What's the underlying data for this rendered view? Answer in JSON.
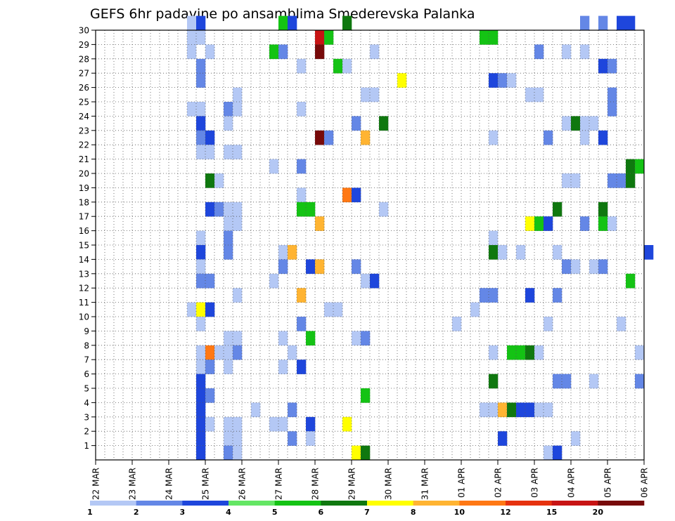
{
  "chart_data": {
    "type": "heatmap",
    "title": "GEFS 6hr padavine po ansamblima Smederevska Palanka",
    "x_labels": [
      "22 MAR",
      "23 MAR",
      "24 MAR",
      "25 MAR",
      "26 MAR",
      "27 MAR",
      "28 MAR",
      "29 MAR",
      "30 MAR",
      "31 MAR",
      "01 APR",
      "02 APR",
      "03 APR",
      "04 APR",
      "05 APR",
      "06 APR"
    ],
    "y_labels": [
      "1",
      "2",
      "3",
      "4",
      "5",
      "6",
      "7",
      "8",
      "9",
      "10",
      "11",
      "12",
      "13",
      "14",
      "15",
      "16",
      "17",
      "18",
      "19",
      "20",
      "21",
      "22",
      "23",
      "24",
      "25",
      "26",
      "27",
      "28",
      "29",
      "30"
    ],
    "ylim": [
      0,
      30
    ],
    "grid": true,
    "colorbar": {
      "tick_labels": [
        "1",
        "2",
        "3",
        "4",
        "5",
        "6",
        "7",
        "8",
        "10",
        "12",
        "15",
        "20"
      ],
      "colors": [
        "#b4c8f5",
        "#6487e6",
        "#1e46dc",
        "#64e664",
        "#14c314",
        "#0f780f",
        "#ffff00",
        "#ffb432",
        "#ff7814",
        "#e6320f",
        "#c81414",
        "#780a0a"
      ]
    },
    "cells": [
      {
        "x": 10,
        "y": 30,
        "c": 1
      },
      {
        "x": 11,
        "y": 30,
        "c": 3
      },
      {
        "x": 20,
        "y": 30,
        "c": 5
      },
      {
        "x": 21,
        "y": 30,
        "c": 3
      },
      {
        "x": 27,
        "y": 30,
        "c": 6
      },
      {
        "x": 53,
        "y": 30,
        "c": 2
      },
      {
        "x": 55,
        "y": 30,
        "c": 2
      },
      {
        "x": 57,
        "y": 30,
        "c": 3
      },
      {
        "x": 58,
        "y": 30,
        "c": 3
      },
      {
        "x": 10,
        "y": 29,
        "c": 1
      },
      {
        "x": 11,
        "y": 29,
        "c": 1
      },
      {
        "x": 24,
        "y": 29,
        "c": 11
      },
      {
        "x": 25,
        "y": 29,
        "c": 5
      },
      {
        "x": 42,
        "y": 29,
        "c": 5
      },
      {
        "x": 43,
        "y": 29,
        "c": 5
      },
      {
        "x": 10,
        "y": 28,
        "c": 1
      },
      {
        "x": 12,
        "y": 28,
        "c": 1
      },
      {
        "x": 19,
        "y": 28,
        "c": 5
      },
      {
        "x": 20,
        "y": 28,
        "c": 2
      },
      {
        "x": 24,
        "y": 28,
        "c": 12
      },
      {
        "x": 30,
        "y": 28,
        "c": 1
      },
      {
        "x": 48,
        "y": 28,
        "c": 2
      },
      {
        "x": 51,
        "y": 28,
        "c": 1
      },
      {
        "x": 53,
        "y": 28,
        "c": 1
      },
      {
        "x": 11,
        "y": 27,
        "c": 2
      },
      {
        "x": 22,
        "y": 27,
        "c": 1
      },
      {
        "x": 26,
        "y": 27,
        "c": 5
      },
      {
        "x": 27,
        "y": 27,
        "c": 1
      },
      {
        "x": 55,
        "y": 27,
        "c": 3
      },
      {
        "x": 56,
        "y": 27,
        "c": 2
      },
      {
        "x": 11,
        "y": 26,
        "c": 2
      },
      {
        "x": 33,
        "y": 26,
        "c": 7
      },
      {
        "x": 43,
        "y": 26,
        "c": 3
      },
      {
        "x": 44,
        "y": 26,
        "c": 2
      },
      {
        "x": 45,
        "y": 26,
        "c": 1
      },
      {
        "x": 15,
        "y": 25,
        "c": 1
      },
      {
        "x": 29,
        "y": 25,
        "c": 1
      },
      {
        "x": 30,
        "y": 25,
        "c": 1
      },
      {
        "x": 47,
        "y": 25,
        "c": 1
      },
      {
        "x": 48,
        "y": 25,
        "c": 1
      },
      {
        "x": 56,
        "y": 25,
        "c": 2
      },
      {
        "x": 10,
        "y": 24,
        "c": 1
      },
      {
        "x": 11,
        "y": 24,
        "c": 1
      },
      {
        "x": 14,
        "y": 24,
        "c": 2
      },
      {
        "x": 15,
        "y": 24,
        "c": 1
      },
      {
        "x": 22,
        "y": 24,
        "c": 1
      },
      {
        "x": 56,
        "y": 24,
        "c": 2
      },
      {
        "x": 11,
        "y": 23,
        "c": 3
      },
      {
        "x": 14,
        "y": 23,
        "c": 1
      },
      {
        "x": 28,
        "y": 23,
        "c": 2
      },
      {
        "x": 31,
        "y": 23,
        "c": 6
      },
      {
        "x": 51,
        "y": 23,
        "c": 1
      },
      {
        "x": 52,
        "y": 23,
        "c": 6
      },
      {
        "x": 53,
        "y": 23,
        "c": 1
      },
      {
        "x": 54,
        "y": 23,
        "c": 1
      },
      {
        "x": 11,
        "y": 22,
        "c": 2
      },
      {
        "x": 12,
        "y": 22,
        "c": 3
      },
      {
        "x": 24,
        "y": 22,
        "c": 12
      },
      {
        "x": 25,
        "y": 22,
        "c": 2
      },
      {
        "x": 29,
        "y": 22,
        "c": 8
      },
      {
        "x": 43,
        "y": 22,
        "c": 1
      },
      {
        "x": 49,
        "y": 22,
        "c": 2
      },
      {
        "x": 53,
        "y": 22,
        "c": 1
      },
      {
        "x": 55,
        "y": 22,
        "c": 3
      },
      {
        "x": 11,
        "y": 21,
        "c": 1
      },
      {
        "x": 12,
        "y": 21,
        "c": 1
      },
      {
        "x": 14,
        "y": 21,
        "c": 1
      },
      {
        "x": 15,
        "y": 21,
        "c": 1
      },
      {
        "x": 19,
        "y": 20,
        "c": 1
      },
      {
        "x": 22,
        "y": 20,
        "c": 2
      },
      {
        "x": 58,
        "y": 20,
        "c": 6
      },
      {
        "x": 59,
        "y": 20,
        "c": 5
      },
      {
        "x": 12,
        "y": 19,
        "c": 6
      },
      {
        "x": 13,
        "y": 19,
        "c": 1
      },
      {
        "x": 51,
        "y": 19,
        "c": 1
      },
      {
        "x": 52,
        "y": 19,
        "c": 1
      },
      {
        "x": 56,
        "y": 19,
        "c": 2
      },
      {
        "x": 57,
        "y": 19,
        "c": 2
      },
      {
        "x": 58,
        "y": 19,
        "c": 6
      },
      {
        "x": 22,
        "y": 18,
        "c": 1
      },
      {
        "x": 27,
        "y": 18,
        "c": 9
      },
      {
        "x": 28,
        "y": 18,
        "c": 3
      },
      {
        "x": 12,
        "y": 17,
        "c": 3
      },
      {
        "x": 13,
        "y": 17,
        "c": 2
      },
      {
        "x": 14,
        "y": 17,
        "c": 1
      },
      {
        "x": 15,
        "y": 17,
        "c": 1
      },
      {
        "x": 22,
        "y": 17,
        "c": 5
      },
      {
        "x": 23,
        "y": 17,
        "c": 5
      },
      {
        "x": 31,
        "y": 17,
        "c": 1
      },
      {
        "x": 50,
        "y": 17,
        "c": 6
      },
      {
        "x": 55,
        "y": 17,
        "c": 6
      },
      {
        "x": 14,
        "y": 16,
        "c": 1
      },
      {
        "x": 15,
        "y": 16,
        "c": 1
      },
      {
        "x": 24,
        "y": 16,
        "c": 8
      },
      {
        "x": 47,
        "y": 16,
        "c": 7
      },
      {
        "x": 48,
        "y": 16,
        "c": 5
      },
      {
        "x": 49,
        "y": 16,
        "c": 3
      },
      {
        "x": 53,
        "y": 16,
        "c": 2
      },
      {
        "x": 55,
        "y": 16,
        "c": 5
      },
      {
        "x": 56,
        "y": 16,
        "c": 1
      },
      {
        "x": 11,
        "y": 15,
        "c": 1
      },
      {
        "x": 14,
        "y": 15,
        "c": 2
      },
      {
        "x": 43,
        "y": 15,
        "c": 1
      },
      {
        "x": 11,
        "y": 14,
        "c": 3
      },
      {
        "x": 14,
        "y": 14,
        "c": 2
      },
      {
        "x": 20,
        "y": 14,
        "c": 1
      },
      {
        "x": 21,
        "y": 14,
        "c": 8
      },
      {
        "x": 43,
        "y": 14,
        "c": 6
      },
      {
        "x": 44,
        "y": 14,
        "c": 1
      },
      {
        "x": 46,
        "y": 14,
        "c": 1
      },
      {
        "x": 50,
        "y": 14,
        "c": 1
      },
      {
        "x": 60,
        "y": 14,
        "c": 3
      },
      {
        "x": 11,
        "y": 13,
        "c": 1
      },
      {
        "x": 20,
        "y": 13,
        "c": 2
      },
      {
        "x": 23,
        "y": 13,
        "c": 3
      },
      {
        "x": 24,
        "y": 13,
        "c": 8
      },
      {
        "x": 28,
        "y": 13,
        "c": 2
      },
      {
        "x": 51,
        "y": 13,
        "c": 2
      },
      {
        "x": 52,
        "y": 13,
        "c": 1
      },
      {
        "x": 54,
        "y": 13,
        "c": 1
      },
      {
        "x": 55,
        "y": 13,
        "c": 2
      },
      {
        "x": 11,
        "y": 12,
        "c": 2
      },
      {
        "x": 12,
        "y": 12,
        "c": 2
      },
      {
        "x": 19,
        "y": 12,
        "c": 1
      },
      {
        "x": 29,
        "y": 12,
        "c": 1
      },
      {
        "x": 30,
        "y": 12,
        "c": 3
      },
      {
        "x": 58,
        "y": 12,
        "c": 5
      },
      {
        "x": 15,
        "y": 11,
        "c": 1
      },
      {
        "x": 22,
        "y": 11,
        "c": 8
      },
      {
        "x": 42,
        "y": 11,
        "c": 2
      },
      {
        "x": 43,
        "y": 11,
        "c": 2
      },
      {
        "x": 47,
        "y": 11,
        "c": 3
      },
      {
        "x": 50,
        "y": 11,
        "c": 2
      },
      {
        "x": 10,
        "y": 10,
        "c": 1
      },
      {
        "x": 11,
        "y": 10,
        "c": 7
      },
      {
        "x": 12,
        "y": 10,
        "c": 3
      },
      {
        "x": 25,
        "y": 10,
        "c": 1
      },
      {
        "x": 26,
        "y": 10,
        "c": 1
      },
      {
        "x": 41,
        "y": 10,
        "c": 1
      },
      {
        "x": 11,
        "y": 9,
        "c": 1
      },
      {
        "x": 22,
        "y": 9,
        "c": 2
      },
      {
        "x": 39,
        "y": 9,
        "c": 1
      },
      {
        "x": 49,
        "y": 9,
        "c": 1
      },
      {
        "x": 57,
        "y": 9,
        "c": 1
      },
      {
        "x": 14,
        "y": 8,
        "c": 1
      },
      {
        "x": 15,
        "y": 8,
        "c": 1
      },
      {
        "x": 20,
        "y": 8,
        "c": 1
      },
      {
        "x": 23,
        "y": 8,
        "c": 5
      },
      {
        "x": 28,
        "y": 8,
        "c": 1
      },
      {
        "x": 29,
        "y": 8,
        "c": 2
      },
      {
        "x": 11,
        "y": 7,
        "c": 1
      },
      {
        "x": 12,
        "y": 7,
        "c": 9
      },
      {
        "x": 13,
        "y": 7,
        "c": 1
      },
      {
        "x": 14,
        "y": 7,
        "c": 1
      },
      {
        "x": 15,
        "y": 7,
        "c": 2
      },
      {
        "x": 21,
        "y": 7,
        "c": 1
      },
      {
        "x": 43,
        "y": 7,
        "c": 1
      },
      {
        "x": 45,
        "y": 7,
        "c": 5
      },
      {
        "x": 46,
        "y": 7,
        "c": 5
      },
      {
        "x": 47,
        "y": 7,
        "c": 6
      },
      {
        "x": 48,
        "y": 7,
        "c": 1
      },
      {
        "x": 59,
        "y": 7,
        "c": 1
      },
      {
        "x": 11,
        "y": 6,
        "c": 1
      },
      {
        "x": 12,
        "y": 6,
        "c": 2
      },
      {
        "x": 14,
        "y": 6,
        "c": 1
      },
      {
        "x": 20,
        "y": 6,
        "c": 1
      },
      {
        "x": 22,
        "y": 6,
        "c": 3
      },
      {
        "x": 11,
        "y": 5,
        "c": 3
      },
      {
        "x": 43,
        "y": 5,
        "c": 6
      },
      {
        "x": 50,
        "y": 5,
        "c": 2
      },
      {
        "x": 51,
        "y": 5,
        "c": 2
      },
      {
        "x": 54,
        "y": 5,
        "c": 1
      },
      {
        "x": 59,
        "y": 5,
        "c": 2
      },
      {
        "x": 11,
        "y": 4,
        "c": 3
      },
      {
        "x": 12,
        "y": 4,
        "c": 2
      },
      {
        "x": 29,
        "y": 4,
        "c": 5
      },
      {
        "x": 11,
        "y": 3,
        "c": 3
      },
      {
        "x": 17,
        "y": 3,
        "c": 1
      },
      {
        "x": 21,
        "y": 3,
        "c": 2
      },
      {
        "x": 42,
        "y": 3,
        "c": 1
      },
      {
        "x": 43,
        "y": 3,
        "c": 1
      },
      {
        "x": 44,
        "y": 3,
        "c": 8
      },
      {
        "x": 45,
        "y": 3,
        "c": 6
      },
      {
        "x": 46,
        "y": 3,
        "c": 3
      },
      {
        "x": 47,
        "y": 3,
        "c": 3
      },
      {
        "x": 48,
        "y": 3,
        "c": 1
      },
      {
        "x": 49,
        "y": 3,
        "c": 1
      },
      {
        "x": 11,
        "y": 2,
        "c": 3
      },
      {
        "x": 12,
        "y": 2,
        "c": 1
      },
      {
        "x": 14,
        "y": 2,
        "c": 1
      },
      {
        "x": 15,
        "y": 2,
        "c": 1
      },
      {
        "x": 19,
        "y": 2,
        "c": 1
      },
      {
        "x": 20,
        "y": 2,
        "c": 1
      },
      {
        "x": 23,
        "y": 2,
        "c": 3
      },
      {
        "x": 27,
        "y": 2,
        "c": 7
      },
      {
        "x": 11,
        "y": 1,
        "c": 3
      },
      {
        "x": 14,
        "y": 1,
        "c": 1
      },
      {
        "x": 15,
        "y": 1,
        "c": 1
      },
      {
        "x": 21,
        "y": 1,
        "c": 2
      },
      {
        "x": 23,
        "y": 1,
        "c": 1
      },
      {
        "x": 44,
        "y": 1,
        "c": 3
      },
      {
        "x": 52,
        "y": 1,
        "c": 1
      },
      {
        "x": 11,
        "y": 0,
        "c": 3
      },
      {
        "x": 14,
        "y": 0,
        "c": 2
      },
      {
        "x": 15,
        "y": 0,
        "c": 1
      },
      {
        "x": 28,
        "y": 0,
        "c": 7
      },
      {
        "x": 29,
        "y": 0,
        "c": 6
      },
      {
        "x": 49,
        "y": 0,
        "c": 1
      },
      {
        "x": 50,
        "y": 0,
        "c": 3
      }
    ]
  }
}
